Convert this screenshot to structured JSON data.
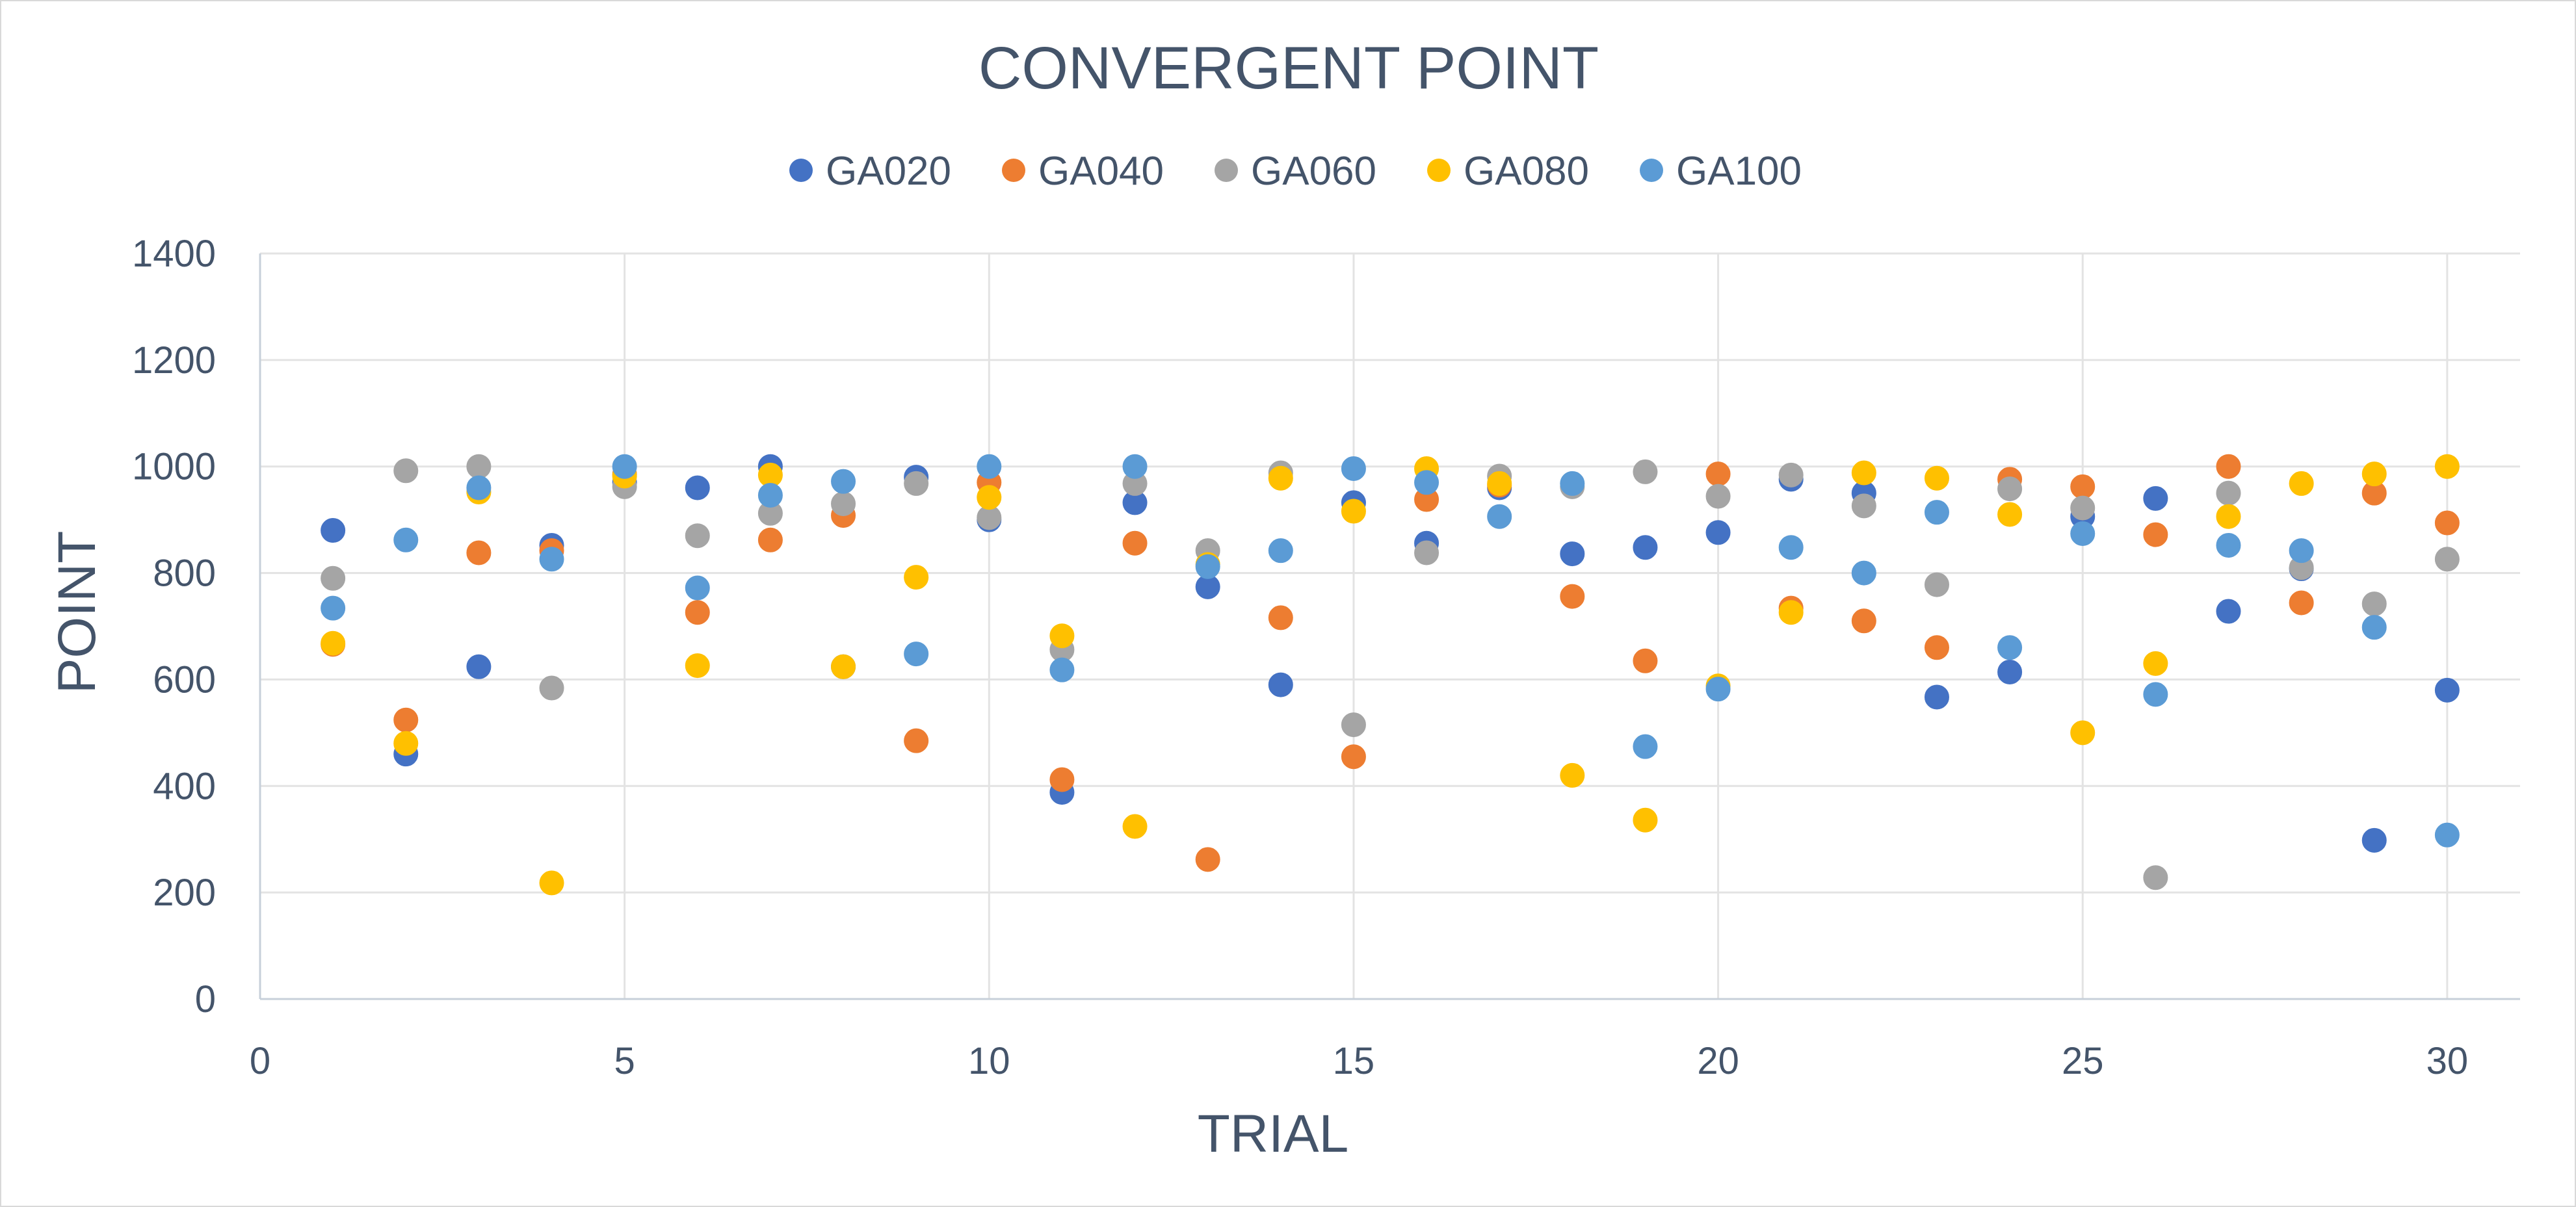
{
  "chart_data": {
    "type": "scatter",
    "title": "CONVERGENT POINT",
    "xlabel": "TRIAL",
    "ylabel": "POINT",
    "xlim": [
      0,
      31
    ],
    "ylim": [
      0,
      1400
    ],
    "xticks": [
      0,
      5,
      10,
      15,
      20,
      25,
      30
    ],
    "yticks": [
      0,
      200,
      400,
      600,
      800,
      1000,
      1200,
      1400
    ],
    "grid": true,
    "legend_position": "top",
    "x": [
      1,
      2,
      3,
      4,
      5,
      6,
      7,
      8,
      9,
      10,
      11,
      12,
      13,
      14,
      15,
      16,
      17,
      18,
      19,
      20,
      21,
      22,
      23,
      24,
      25,
      26,
      27,
      28,
      29,
      30
    ],
    "series": [
      {
        "name": "GA020",
        "color": "#4472c4",
        "values": [
          880,
          460,
          624,
          852,
          970,
          960,
          1000,
          624,
          980,
          900,
          388,
          932,
          774,
          590,
          932,
          856,
          960,
          836,
          848,
          876,
          976,
          950,
          567,
          614,
          906,
          940,
          728,
          808,
          298,
          580
        ]
      },
      {
        "name": "GA040",
        "color": "#ed7d31",
        "values": [
          666,
          524,
          838,
          842,
          985,
          726,
          862,
          908,
          485,
          970,
          412,
          856,
          262,
          716,
          455,
          938,
          965,
          756,
          635,
          986,
          734,
          710,
          660,
          976,
          962,
          872,
          1000,
          744,
          950,
          894
        ]
      },
      {
        "name": "GA060",
        "color": "#a5a5a5",
        "values": [
          790,
          992,
          1000,
          584,
          962,
          870,
          912,
          930,
          968,
          904,
          656,
          968,
          842,
          988,
          515,
          838,
          982,
          962,
          990,
          944,
          984,
          926,
          778,
          958,
          922,
          228,
          950,
          810,
          742,
          826
        ]
      },
      {
        "name": "GA080",
        "color": "#ffc000",
        "values": [
          668,
          480,
          952,
          218,
          982,
          626,
          984,
          624,
          792,
          942,
          682,
          324,
          816,
          978,
          916,
          996,
          968,
          420,
          336,
          588,
          726,
          988,
          978,
          910,
          500,
          630,
          906,
          968,
          986,
          1000
        ]
      },
      {
        "name": "GA100",
        "color": "#5b9bd5",
        "values": [
          734,
          862,
          960,
          826,
          1000,
          772,
          946,
          972,
          648,
          1000,
          618,
          1000,
          812,
          842,
          996,
          970,
          906,
          968,
          474,
          582,
          848,
          800,
          914,
          660,
          874,
          572,
          852,
          842,
          698,
          308
        ]
      }
    ]
  }
}
